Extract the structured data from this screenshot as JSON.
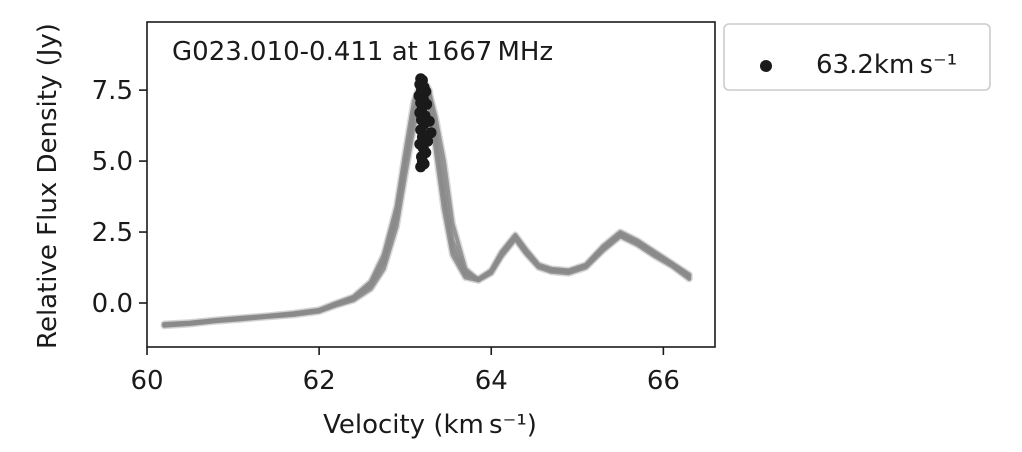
{
  "chart_data": {
    "type": "line",
    "annotation": "G023.010-0.411 at 1667 MHz",
    "xlabel": "Velocity (km s⁻¹)",
    "ylabel": "Relative Flux Density (Jy)",
    "xlim": [
      60.0,
      66.6
    ],
    "ylim": [
      -1.55,
      9.9
    ],
    "xticks": [
      "60",
      "62",
      "64",
      "66"
    ],
    "xtick_values": [
      60,
      62,
      64,
      66
    ],
    "yticks": [
      "0.0",
      "2.5",
      "5.0",
      "7.5"
    ],
    "ytick_values": [
      0.0,
      2.5,
      5.0,
      7.5
    ],
    "grid": false,
    "legend": {
      "position": "outside-right",
      "labels": [
        "63.2km s⁻¹"
      ]
    },
    "colors": {
      "spectra": "#8a8a8a",
      "spectra_light": "#cfcfcf",
      "marker": "#1a1a1a"
    },
    "series": [
      {
        "role": "spectrum",
        "x": [
          60.2,
          60.5,
          60.8,
          61.1,
          61.4,
          61.7,
          62.0,
          62.2,
          62.4,
          62.6,
          62.75,
          62.9,
          63.0,
          63.1,
          63.2,
          63.28,
          63.35,
          63.45,
          63.55,
          63.7,
          63.85,
          64.0,
          64.12,
          64.28,
          64.4,
          64.55,
          64.7,
          64.9,
          65.1,
          65.3,
          65.5,
          65.7,
          65.9,
          66.1,
          66.3
        ],
        "y": [
          -0.78,
          -0.72,
          -0.62,
          -0.55,
          -0.47,
          -0.4,
          -0.28,
          -0.05,
          0.15,
          0.6,
          1.4,
          3.0,
          4.9,
          6.6,
          7.6,
          7.0,
          5.5,
          3.3,
          1.7,
          0.9,
          0.8,
          1.1,
          1.7,
          2.3,
          1.8,
          1.3,
          1.15,
          1.1,
          1.3,
          1.9,
          2.4,
          2.1,
          1.7,
          1.35,
          0.9
        ]
      },
      {
        "role": "spectrum",
        "x": [
          60.2,
          60.5,
          60.8,
          61.1,
          61.4,
          61.7,
          62.0,
          62.2,
          62.4,
          62.6,
          62.75,
          62.9,
          63.0,
          63.1,
          63.2,
          63.28,
          63.35,
          63.45,
          63.55,
          63.7,
          63.85,
          64.0,
          64.12,
          64.28,
          64.4,
          64.55,
          64.7,
          64.9,
          65.1,
          65.3,
          65.5,
          65.7,
          65.9,
          66.1,
          66.3
        ],
        "y": [
          -0.74,
          -0.69,
          -0.6,
          -0.52,
          -0.45,
          -0.36,
          -0.24,
          -0.0,
          0.22,
          0.75,
          1.7,
          3.4,
          5.3,
          7.1,
          7.9,
          7.5,
          6.2,
          4.2,
          2.2,
          1.1,
          0.85,
          1.15,
          1.8,
          2.4,
          1.9,
          1.35,
          1.2,
          1.15,
          1.35,
          2.0,
          2.5,
          2.2,
          1.8,
          1.4,
          1.0
        ]
      },
      {
        "role": "spectrum",
        "x": [
          60.2,
          60.5,
          60.8,
          61.1,
          61.4,
          61.7,
          62.0,
          62.2,
          62.4,
          62.6,
          62.75,
          62.9,
          63.0,
          63.1,
          63.2,
          63.28,
          63.35,
          63.45,
          63.55,
          63.7,
          63.85,
          64.0,
          64.12,
          64.28,
          64.4,
          64.55,
          64.7,
          64.9,
          65.1,
          65.3,
          65.5,
          65.7,
          65.9,
          66.1,
          66.3
        ],
        "y": [
          -0.8,
          -0.74,
          -0.64,
          -0.57,
          -0.49,
          -0.42,
          -0.3,
          -0.08,
          0.1,
          0.5,
          1.2,
          2.7,
          4.5,
          6.2,
          7.3,
          7.4,
          6.6,
          5.0,
          2.8,
          1.2,
          0.8,
          1.05,
          1.65,
          2.25,
          1.75,
          1.25,
          1.1,
          1.05,
          1.25,
          1.85,
          2.35,
          2.05,
          1.65,
          1.3,
          0.85
        ]
      },
      {
        "role": "spectrum",
        "x": [
          60.2,
          60.5,
          60.8,
          61.1,
          61.4,
          61.7,
          62.0,
          62.2,
          62.4,
          62.6,
          62.75,
          62.9,
          63.0,
          63.1,
          63.2,
          63.28,
          63.35,
          63.45,
          63.55,
          63.7,
          63.85,
          64.0,
          64.12,
          64.28,
          64.4,
          64.55,
          64.7,
          64.9,
          65.1,
          65.3,
          65.5,
          65.7,
          65.9,
          66.1,
          66.3
        ],
        "y": [
          -0.76,
          -0.7,
          -0.61,
          -0.54,
          -0.46,
          -0.38,
          -0.26,
          -0.03,
          0.18,
          0.68,
          1.55,
          3.2,
          5.0,
          6.8,
          7.5,
          7.1,
          5.8,
          3.7,
          1.9,
          1.0,
          0.82,
          1.1,
          1.75,
          2.35,
          1.85,
          1.3,
          1.17,
          1.12,
          1.32,
          1.95,
          2.45,
          2.15,
          1.75,
          1.38,
          0.95
        ]
      },
      {
        "role": "peak-markers",
        "x": [
          63.18,
          63.2,
          63.17,
          63.22,
          63.19,
          63.24,
          63.16,
          63.21,
          63.18,
          63.25,
          63.2,
          63.17,
          63.23,
          63.19,
          63.28,
          63.22,
          63.18,
          63.3,
          63.2,
          63.26,
          63.17,
          63.21,
          63.24,
          63.19,
          63.2,
          63.22,
          63.18
        ],
        "y": [
          7.9,
          7.85,
          7.7,
          7.6,
          7.5,
          7.45,
          7.3,
          7.2,
          7.05,
          7.0,
          6.9,
          6.7,
          6.6,
          6.45,
          6.4,
          6.3,
          6.1,
          6.0,
          5.85,
          5.7,
          5.6,
          5.45,
          5.3,
          5.15,
          5.0,
          4.9,
          4.8
        ]
      }
    ]
  }
}
